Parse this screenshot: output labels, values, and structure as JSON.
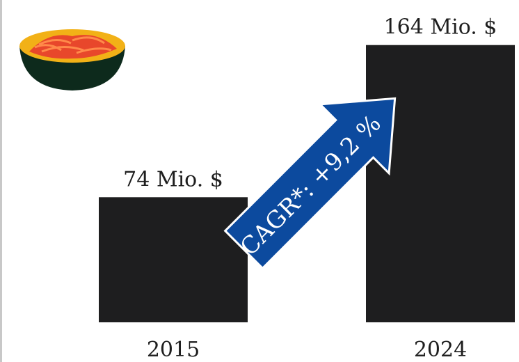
{
  "chart_data": {
    "type": "bar",
    "categories": [
      "2015",
      "2024"
    ],
    "values": [
      74,
      164
    ],
    "value_labels": [
      "74 Mio. $",
      "164 Mio. $"
    ],
    "annotation": "CAGR*: +9,2 %",
    "ylim": [
      0,
      175
    ],
    "grid": false,
    "colors": {
      "bar": "#1e1e1f",
      "arrow": "#0c4a9e",
      "arrow_text": "#ffffff",
      "bowl": "#0d2a1c",
      "bowl_rim": "#f2b117",
      "noodles": "#e8472b"
    }
  },
  "icons": {
    "bowl": "noodle-bowl-icon"
  }
}
